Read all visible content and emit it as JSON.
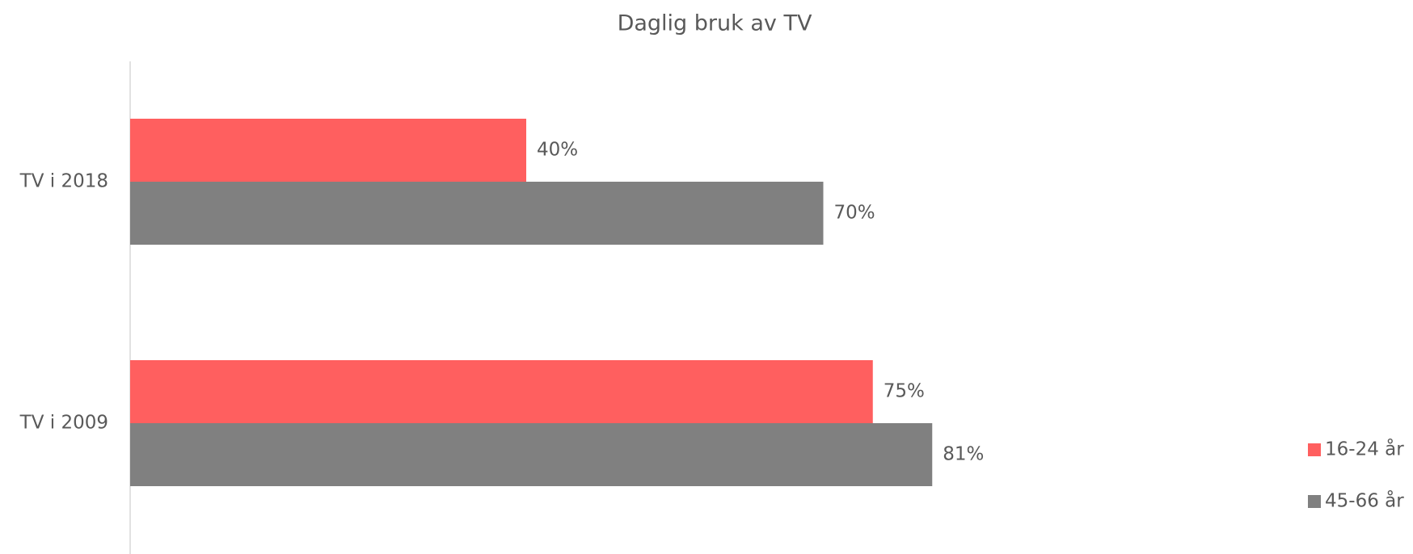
{
  "chart_data": {
    "type": "bar",
    "orientation": "horizontal",
    "title": "Daglig bruk av TV",
    "categories": [
      "TV i 2018",
      "TV i 2009"
    ],
    "series": [
      {
        "name": "16-24 år",
        "color": "#ff5f5f",
        "values": [
          40,
          75
        ],
        "value_labels": [
          "40%",
          "75%"
        ]
      },
      {
        "name": "45-66 år",
        "color": "#808080",
        "values": [
          70,
          81
        ],
        "value_labels": [
          "70%",
          "81%"
        ]
      }
    ],
    "legend": "right"
  }
}
